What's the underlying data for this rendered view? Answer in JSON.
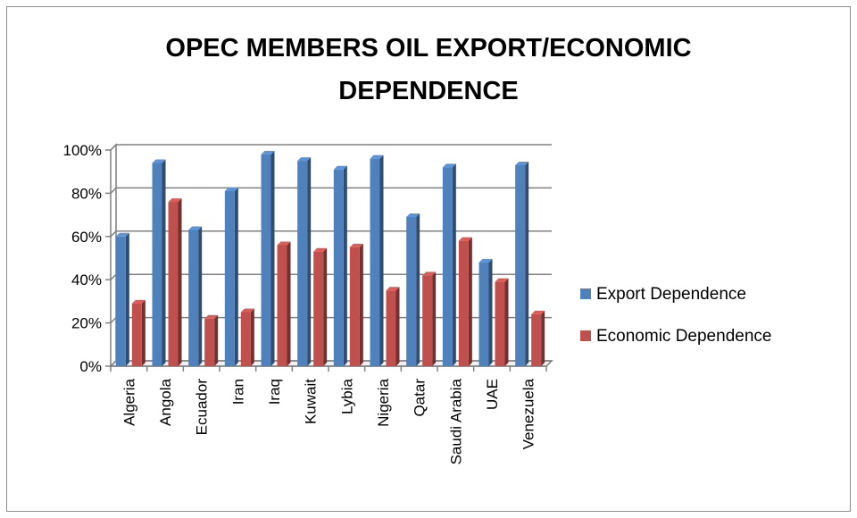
{
  "chart_data": {
    "type": "bar",
    "title_lines": [
      "OPEC MEMBERS OIL EXPORT/ECONOMIC",
      "DEPENDENCE"
    ],
    "xlabel": "",
    "ylabel": "",
    "categories": [
      "Algeria",
      "Angola",
      "Ecuador",
      "Iran",
      "Iraq",
      "Kuwait",
      "Lybia",
      "Nigeria",
      "Qatar",
      "Saudi Arabia",
      "UAE",
      "Venezuela"
    ],
    "series": [
      {
        "name": "Export Dependence",
        "color": "#4f81bd",
        "values": [
          0.6,
          0.94,
          0.63,
          0.81,
          0.98,
          0.95,
          0.91,
          0.96,
          0.69,
          0.92,
          0.48,
          0.93
        ]
      },
      {
        "name": "Economic Dependence",
        "color": "#c0504d",
        "values": [
          0.29,
          0.76,
          0.22,
          0.25,
          0.56,
          0.53,
          0.55,
          0.35,
          0.42,
          0.58,
          0.39,
          0.24
        ]
      }
    ],
    "ylim": [
      0,
      1
    ],
    "yticks": [
      0,
      0.2,
      0.4,
      0.6,
      0.8,
      1.0
    ],
    "ytick_labels": [
      "0%",
      "20%",
      "40%",
      "60%",
      "80%",
      "100%"
    ],
    "grid": true,
    "legend_position": "right",
    "style": "3d-column"
  }
}
